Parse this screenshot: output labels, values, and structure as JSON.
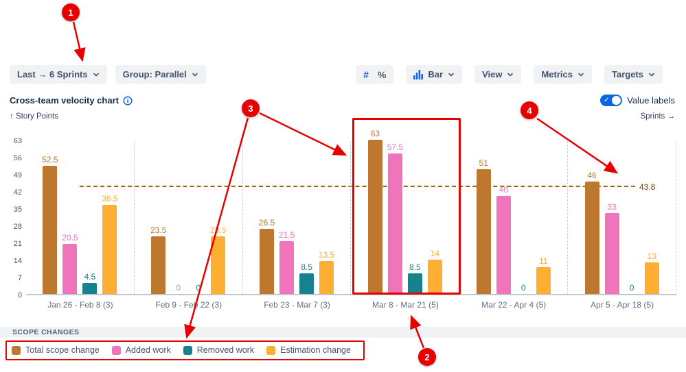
{
  "toolbar": {
    "sprints_range": "Last → 6 Sprints",
    "group_mode": "Group: Parallel",
    "number_format": "#",
    "percent_format": "%",
    "chart_type": "Bar",
    "view": "View",
    "metrics": "Metrics",
    "targets": "Targets"
  },
  "header": {
    "title": "Cross-team velocity chart",
    "value_labels_toggle": "Value labels",
    "y_axis_title": "↑ Story Points",
    "sprints_link": "Sprints →"
  },
  "legend": {
    "header": "SCOPE CHANGES"
  },
  "chart_data": {
    "type": "bar",
    "title": "Cross-team velocity chart",
    "ylabel": "Story Points",
    "ylim": [
      0,
      63
    ],
    "yticks": [
      0,
      7,
      14,
      21,
      28,
      35,
      42,
      49,
      56,
      63
    ],
    "grid": "vertical-dashed",
    "legend_position": "bottom",
    "categories": [
      "Jan 26 - Feb 8 (3)",
      "Feb 9 - Feb 22 (3)",
      "Feb 23 - Mar 7 (3)",
      "Mar 8 - Mar 21 (5)",
      "Mar 22 - Apr 4 (5)",
      "Apr 5 - Apr 18 (5)"
    ],
    "series": [
      {
        "name": "Total scope change",
        "color": "#BE772F",
        "values": [
          52.5,
          23.5,
          26.5,
          63,
          51,
          46
        ]
      },
      {
        "name": "Added work",
        "color": "#F074BA",
        "values": [
          20.5,
          0,
          21.5,
          57.5,
          40,
          33
        ]
      },
      {
        "name": "Removed work",
        "color": "#17818E",
        "values": [
          4.5,
          0,
          8.5,
          8.5,
          0,
          0
        ]
      },
      {
        "name": "Estimation change",
        "color": "#FFAE34",
        "values": [
          36.5,
          23.5,
          13.5,
          14,
          11,
          13
        ]
      }
    ],
    "target_line": {
      "value": 43.8,
      "label": "43.8",
      "color": "#A4600F"
    },
    "highlighted_category": "Mar 8 - Mar 21 (5)"
  },
  "annotations": {
    "color": "#E60000",
    "callouts": [
      "1",
      "2",
      "3",
      "4"
    ]
  },
  "colors": {
    "accent_blue": "#1868DB",
    "toggle_blue": "#0C66E4",
    "annotation_red": "#E60000"
  }
}
